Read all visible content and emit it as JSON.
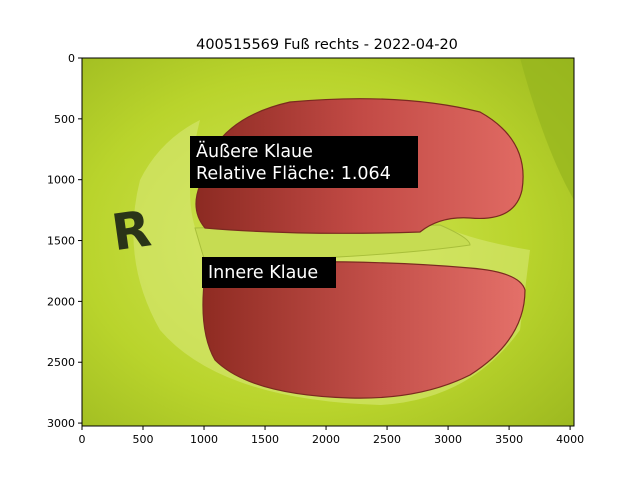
{
  "figure": {
    "title": "400515569 Fuß rechts - 2022-04-20",
    "x_ticks": [
      "0",
      "500",
      "1000",
      "1500",
      "2000",
      "2500",
      "3000",
      "3500",
      "4000"
    ],
    "y_ticks": [
      "0",
      "500",
      "1000",
      "1500",
      "2000",
      "2500",
      "3000"
    ],
    "x_range": [
      0,
      4032
    ],
    "y_range": [
      0,
      3024
    ]
  },
  "annotations": {
    "outer_line1": "Äußere Klaue",
    "outer_line2": "Relative Fläche: 1.064",
    "inner": "Innere Klaue"
  },
  "photo": {
    "marker_letter": "R"
  },
  "colors": {
    "background_yellow": "#b8d62a",
    "claw_red": "#b8403e",
    "label_box": "#000000",
    "label_text": "#ffffff"
  }
}
